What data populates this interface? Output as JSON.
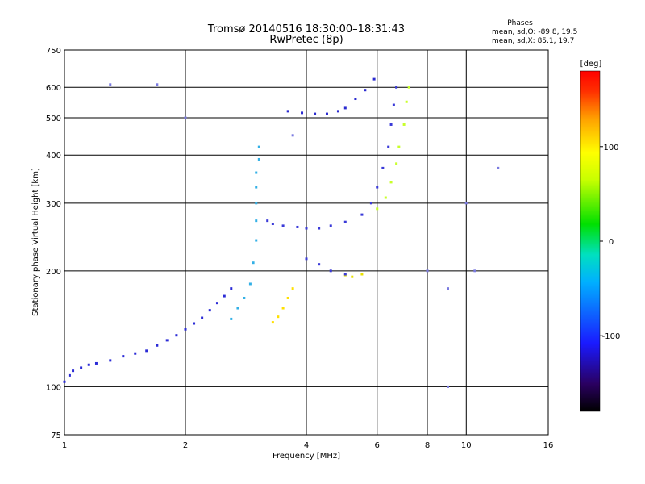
{
  "chart_data": {
    "type": "scatter",
    "title": "Tromsø 20140516 18:30:00–18:31:43",
    "subtitle": "RwPretec (8p)",
    "xlabel": "Frequency [MHz]",
    "ylabel": "Stationary phase Virtual Height [km]",
    "x_scale": "log",
    "y_scale": "log",
    "xlim": [
      1,
      16
    ],
    "ylim": [
      75,
      750
    ],
    "x_ticks": [
      1,
      2,
      4,
      6,
      8,
      10,
      16
    ],
    "y_ticks": [
      75,
      100,
      200,
      300,
      400,
      500,
      600,
      750
    ],
    "grid": true,
    "legend": {
      "title": "Phases",
      "lines": [
        "mean, sd,O: -89.8, 19.5",
        "mean, sd,X: 85.1, 19.7"
      ],
      "position": "top-right"
    },
    "colorbar": {
      "label": "[deg]",
      "ticks": [
        100,
        0,
        -100
      ],
      "range": [
        -180,
        180
      ],
      "colors": [
        "#000000",
        "#2a0060",
        "#1a1aff",
        "#00b0ff",
        "#00e0c0",
        "#00e000",
        "#c8ff00",
        "#ffff00",
        "#ffa000",
        "#ff3000",
        "#ff0000"
      ]
    },
    "series": [
      {
        "color": "#2b2bd6",
        "values": [
          [
            1.0,
            103
          ],
          [
            1.03,
            107
          ],
          [
            1.05,
            110
          ],
          [
            1.1,
            112
          ],
          [
            1.15,
            114
          ],
          [
            1.2,
            115
          ],
          [
            1.3,
            117
          ],
          [
            1.4,
            120
          ],
          [
            1.5,
            122
          ],
          [
            1.6,
            124
          ],
          [
            1.7,
            128
          ],
          [
            1.8,
            132
          ],
          [
            1.9,
            136
          ],
          [
            2.0,
            141
          ],
          [
            2.1,
            146
          ],
          [
            2.2,
            151
          ],
          [
            2.3,
            158
          ],
          [
            2.4,
            165
          ],
          [
            2.5,
            172
          ],
          [
            2.6,
            180
          ]
        ]
      },
      {
        "color": "#33b0e6",
        "values": [
          [
            2.6,
            150
          ],
          [
            2.7,
            160
          ],
          [
            2.8,
            170
          ],
          [
            2.9,
            185
          ],
          [
            2.95,
            210
          ],
          [
            3.0,
            240
          ],
          [
            3.0,
            270
          ],
          [
            3.0,
            300
          ],
          [
            3.0,
            330
          ],
          [
            3.0,
            360
          ],
          [
            3.05,
            390
          ],
          [
            3.05,
            420
          ]
        ]
      },
      {
        "color": "#3a3ad8",
        "values": [
          [
            3.2,
            270
          ],
          [
            3.3,
            265
          ],
          [
            3.5,
            262
          ],
          [
            3.8,
            260
          ],
          [
            4.0,
            258
          ],
          [
            4.3,
            258
          ],
          [
            4.6,
            262
          ],
          [
            5.0,
            268
          ],
          [
            5.5,
            280
          ],
          [
            5.8,
            300
          ],
          [
            6.0,
            330
          ],
          [
            6.2,
            370
          ],
          [
            6.4,
            420
          ],
          [
            6.5,
            480
          ],
          [
            6.6,
            540
          ],
          [
            6.7,
            600
          ]
        ]
      },
      {
        "color": "#2a2ad0",
        "values": [
          [
            3.6,
            520
          ],
          [
            3.9,
            515
          ],
          [
            4.2,
            512
          ],
          [
            4.5,
            512
          ],
          [
            4.8,
            520
          ],
          [
            5.0,
            530
          ],
          [
            5.3,
            560
          ],
          [
            5.6,
            590
          ],
          [
            5.9,
            630
          ]
        ]
      },
      {
        "color": "#ffe000",
        "values": [
          [
            3.3,
            147
          ],
          [
            3.4,
            152
          ],
          [
            3.5,
            160
          ],
          [
            3.6,
            170
          ],
          [
            3.7,
            180
          ]
        ]
      },
      {
        "color": "#c8ff2a",
        "values": [
          [
            6.0,
            290
          ],
          [
            6.3,
            310
          ],
          [
            6.5,
            340
          ],
          [
            6.7,
            380
          ],
          [
            6.8,
            420
          ],
          [
            7.0,
            480
          ],
          [
            7.1,
            550
          ],
          [
            7.2,
            600
          ]
        ]
      },
      {
        "color": "#e8e000",
        "values": [
          [
            5.0,
            195
          ],
          [
            5.2,
            193
          ],
          [
            5.5,
            196
          ]
        ]
      },
      {
        "color": "#3a3ad8",
        "values": [
          [
            4.0,
            215
          ],
          [
            4.3,
            208
          ],
          [
            4.6,
            200
          ],
          [
            5.0,
            196
          ]
        ]
      },
      {
        "color": "#7a7ae0",
        "values": [
          [
            8.0,
            200
          ],
          [
            9.0,
            100
          ],
          [
            9.0,
            180
          ],
          [
            10.0,
            300
          ],
          [
            10.5,
            200
          ],
          [
            12.0,
            370
          ],
          [
            1.3,
            610
          ],
          [
            1.7,
            610
          ],
          [
            2.0,
            500
          ],
          [
            3.7,
            450
          ]
        ]
      }
    ]
  }
}
